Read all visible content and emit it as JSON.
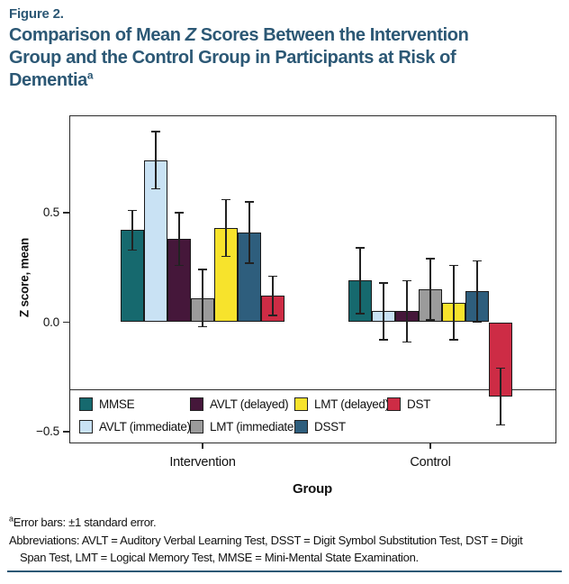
{
  "figure_label": "Figure 2.",
  "title": {
    "line1_pre": "Comparison of Mean ",
    "stat_letter": "Z",
    "line1_post": " Scores Between the Intervention",
    "line2": "Group and the Control Group in Participants at Risk of",
    "line3": "Dementia",
    "superscript": "a"
  },
  "chart_data": {
    "type": "bar",
    "title": "Comparison of Mean Z Scores Between the Intervention Group and the Control Group in Participants at Risk of Dementia",
    "ylabel": "Z score, mean",
    "xlabel": "Group",
    "groups": [
      "Intervention",
      "Control"
    ],
    "yticks": [
      {
        "value": 0.5,
        "label": "0.5"
      },
      {
        "value": 0.0,
        "label": "0.0"
      },
      {
        "value": -0.5,
        "label": "−0.5"
      }
    ],
    "ylim": [
      -0.55,
      0.95
    ],
    "grid": false,
    "legend_position": "bottom-left-inside",
    "error_bars": "±1 standard error",
    "series": [
      {
        "name": "MMSE",
        "color": "#16696E",
        "values": [
          0.42,
          0.19
        ],
        "errors": [
          0.09,
          0.15
        ]
      },
      {
        "name": "AVLT (immediate)",
        "color": "#C9E2F4",
        "values": [
          0.74,
          0.05
        ],
        "errors": [
          0.13,
          0.13
        ]
      },
      {
        "name": "AVLT (delayed)",
        "color": "#45173A",
        "values": [
          0.38,
          0.05
        ],
        "errors": [
          0.12,
          0.14
        ]
      },
      {
        "name": "LMT (immediate)",
        "color": "#9B9B9B",
        "values": [
          0.11,
          0.15
        ],
        "errors": [
          0.13,
          0.14
        ]
      },
      {
        "name": "LMT (delayed)",
        "color": "#F7E32C",
        "values": [
          0.43,
          0.09
        ],
        "errors": [
          0.13,
          0.17
        ]
      },
      {
        "name": "DSST",
        "color": "#2E5E7D",
        "values": [
          0.41,
          0.14
        ],
        "errors": [
          0.14,
          0.14
        ]
      },
      {
        "name": "DST",
        "color": "#CD2C45",
        "values": [
          0.12,
          -0.34
        ],
        "errors": [
          0.09,
          0.13
        ]
      }
    ]
  },
  "footnotes": {
    "error_note": {
      "superscript": "a",
      "text": "Error bars: ±1 standard error."
    },
    "abbrev_line1": "Abbreviations: AVLT = Auditory Verbal Learning Test, DSST = Digit Symbol Substitution Test, DST = Digit",
    "abbrev_line2": "Span Test, LMT = Logical Memory Test, MMSE = Mini-Mental State Examination."
  },
  "colors": {
    "accent": "#2C5875",
    "axis": "#2b2b2b"
  }
}
